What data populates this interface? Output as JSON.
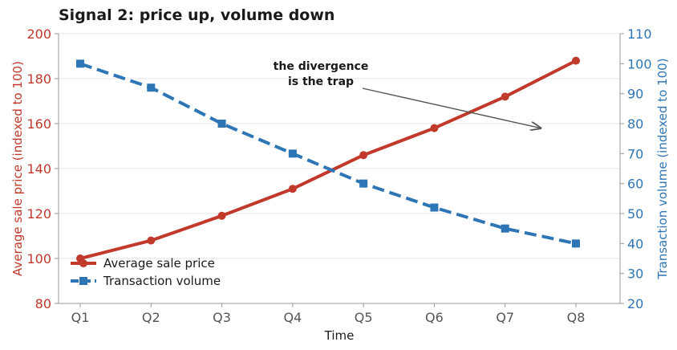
{
  "chart_data": {
    "type": "line",
    "title": "Signal 2: price up, volume down",
    "xlabel": "Time",
    "categories": [
      "Q1",
      "Q2",
      "Q3",
      "Q4",
      "Q5",
      "Q6",
      "Q7",
      "Q8"
    ],
    "y_left": {
      "label": "Average sale price (indexed to 100)",
      "lim": [
        80,
        200
      ],
      "ticks": [
        80,
        100,
        120,
        140,
        160,
        180,
        200
      ],
      "color": "#c0392b"
    },
    "y_right": {
      "label": "Transaction volume (indexed to 100)",
      "lim": [
        20,
        110
      ],
      "ticks": [
        20,
        30,
        40,
        50,
        60,
        70,
        80,
        90,
        100,
        110
      ],
      "color": "#2e75b6"
    },
    "series": [
      {
        "name": "Average sale price",
        "axis": "left",
        "style": "solid",
        "marker": "circle",
        "color": "#c0392b",
        "values": [
          100,
          108,
          119,
          131,
          146,
          158,
          172,
          188
        ]
      },
      {
        "name": "Transaction volume",
        "axis": "right",
        "style": "dashed",
        "marker": "square",
        "color": "#2e75b6",
        "values": [
          100,
          92,
          80,
          70,
          60,
          52,
          45,
          40
        ]
      }
    ],
    "grid": "horizontal",
    "legend_position": "lower-left",
    "annotation": {
      "lines": [
        "the divergence",
        "is the trap"
      ],
      "arrow_target": {
        "x": 6.5,
        "y": 158
      }
    }
  }
}
